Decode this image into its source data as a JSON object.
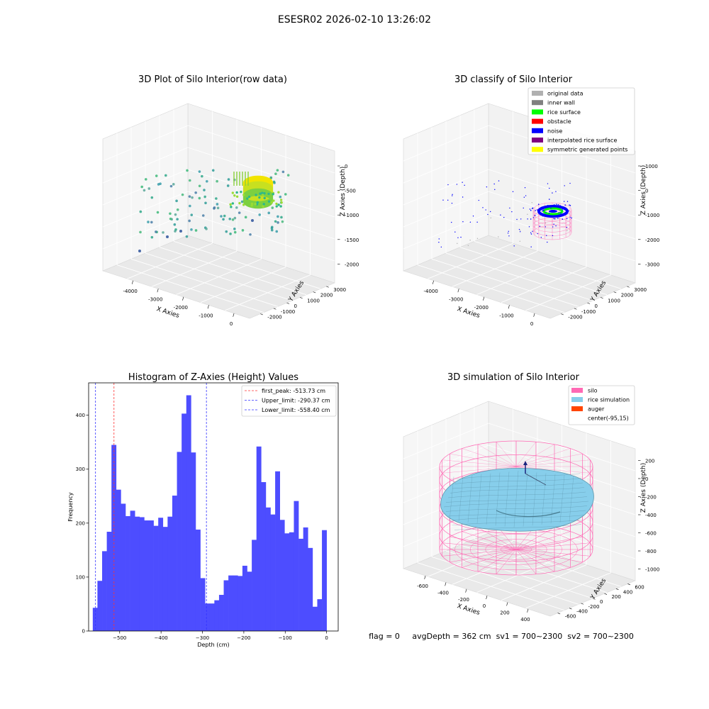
{
  "figure": {
    "suptitle": "ESESR02 2026-02-10 13:26:02",
    "status_line": "flag = 0     avgDepth = 362 cm  sv1 = 700~2300  sv2 = 700~2300"
  },
  "colors": {
    "histogram_bar": "#4d4dff",
    "first_peak_line": "#ff3333",
    "limit_line": "#3333ff",
    "silo": "#ff69b4",
    "rice_simulation": "#87ceeb",
    "auger": "#ff4500",
    "rice_surface": "#00ff00",
    "noise": "#0000ff",
    "obstacle": "#ff0000",
    "inner_wall": "#808080",
    "original_data": "#b0b0b0",
    "interpolated_rice_surface": "#800080",
    "symmetric_generated_points": "#ffff00"
  },
  "chart_data": [
    {
      "type": "scatter",
      "title": "3D Plot of Silo Interior(row data)",
      "xlabel": "X Axies",
      "ylabel": "Y Axies",
      "zlabel": "Z Axies (Depth)",
      "x_ticks": [
        "-4000",
        "-3000",
        "-2000",
        "-1000",
        "0"
      ],
      "y_ticks": [
        "-2000",
        "-1000",
        "0",
        "1000",
        "2000",
        "3000"
      ],
      "z_ticks": [
        "-2000",
        "-1500",
        "-1000",
        "-500",
        "0"
      ]
    },
    {
      "type": "scatter",
      "title": "3D classify of Silo Interior",
      "xlabel": "X Axies",
      "ylabel": "Y Axies",
      "zlabel": "Z Axies (Depth)",
      "x_ticks": [
        "-4000",
        "-3000",
        "-2000",
        "-1000",
        "0"
      ],
      "y_ticks": [
        "-2000",
        "-1000",
        "0",
        "1000",
        "2000",
        "3000"
      ],
      "z_ticks": [
        "-3000",
        "-2000",
        "-1000",
        "0",
        "1000"
      ],
      "legend": [
        "original data",
        "inner wall",
        "rice surface",
        "obstacle",
        "noise",
        "interpolated rice surface",
        "symmetric generated points"
      ],
      "legend_placement": "top-right"
    },
    {
      "type": "bar",
      "title": "Histogram of Z-Axies (Height) Values",
      "xlabel": "Depth (cm)",
      "ylabel": "Frequency",
      "xlim": [
        -575,
        28
      ],
      "ylim": [
        0,
        460
      ],
      "x_ticks": [
        -500,
        -400,
        -300,
        -200,
        -100,
        0
      ],
      "y_ticks": [
        0,
        100,
        200,
        300,
        400
      ],
      "bin_start": -565,
      "bin_width": 11.3,
      "values": [
        43,
        93,
        148,
        184,
        345,
        262,
        236,
        213,
        223,
        212,
        211,
        205,
        205,
        195,
        210,
        193,
        212,
        251,
        332,
        403,
        437,
        331,
        188,
        98,
        51,
        51,
        57,
        67,
        94,
        103,
        103,
        102,
        121,
        110,
        169,
        342,
        276,
        229,
        216,
        296,
        206,
        181,
        183,
        241,
        171,
        192,
        154,
        45,
        59,
        187
      ],
      "lines": [
        {
          "label": "first_peak: -513.73 cm",
          "x": -513.73
        },
        {
          "label": "Upper_limit: -290.37 cm",
          "x": -290.37
        },
        {
          "label": "Lower_limit: -558.40 cm",
          "x": -558.4
        }
      ],
      "legend_placement": "top-right"
    },
    {
      "type": "scatter",
      "title": "3D simulation of Silo Interior",
      "xlabel": "X Axies",
      "ylabel": "Y Axies",
      "zlabel": "Z Axies (Depth)",
      "x_ticks": [
        "-600",
        "-400",
        "-200",
        "0",
        "200",
        "400"
      ],
      "y_ticks": [
        "-600",
        "-400",
        "-200",
        "0",
        "200",
        "400",
        "600"
      ],
      "z_ticks": [
        "-1000",
        "-800",
        "-600",
        "-400",
        "-200",
        "0",
        "200"
      ],
      "legend": [
        "silo",
        "rice simulation",
        "auger",
        "center(-95,15)"
      ],
      "legend_placement": "top-right"
    }
  ]
}
